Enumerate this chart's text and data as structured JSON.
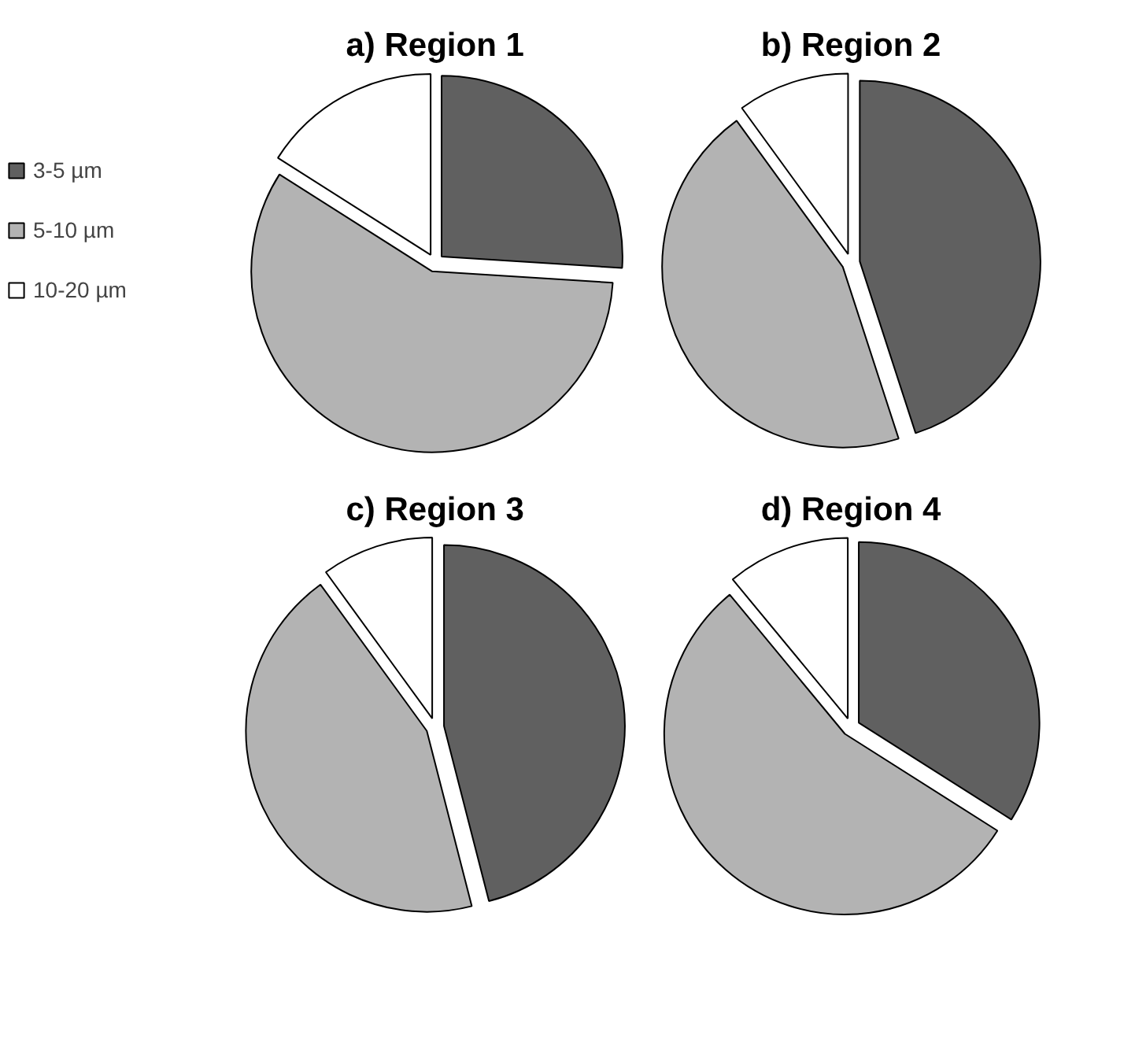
{
  "chart_data": [
    {
      "type": "pie",
      "title": "a) Region 1",
      "categories": [
        "3-5 µm",
        "5-10 µm",
        "10-20 µm"
      ],
      "values": [
        26,
        58,
        16
      ],
      "colors": [
        "#606060",
        "#b3b3b3",
        "#ffffff"
      ],
      "legend": "left"
    },
    {
      "type": "pie",
      "title": "b) Region 2",
      "categories": [
        null,
        null,
        null
      ],
      "values": [
        45,
        45,
        10
      ],
      "colors": [
        "#606060",
        "#b3b3b3",
        "#ffffff"
      ]
    },
    {
      "type": "pie",
      "title": "c) Region 3",
      "categories": [
        null,
        null,
        null
      ],
      "values": [
        46,
        44,
        10
      ],
      "colors": [
        "#606060",
        "#b3b3b3",
        "#ffffff"
      ]
    },
    {
      "type": "pie",
      "title": "d) Region 4",
      "categories": [
        null,
        null,
        null
      ],
      "values": [
        34,
        55,
        11
      ],
      "colors": [
        "#606060",
        "#b3b3b3",
        "#ffffff"
      ]
    }
  ]
}
